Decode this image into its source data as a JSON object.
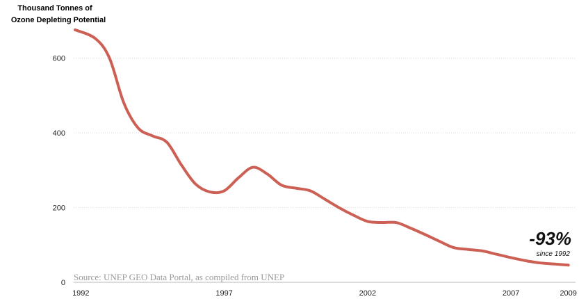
{
  "chart_data": {
    "type": "line",
    "title": "",
    "ylabel_lines": [
      "Thousand Tonnes of",
      "Ozone Depleting Potential"
    ],
    "xlabel": "",
    "x_ticks": [
      "1992",
      "1997",
      "2002",
      "2007",
      "2009"
    ],
    "y_ticks": [
      "0",
      "200",
      "400",
      "600"
    ],
    "xlim": [
      1991.75,
      2009.25
    ],
    "ylim": [
      0,
      700
    ],
    "grid": "horizontal dotted",
    "series": [
      {
        "color": "#cc6054",
        "x": [
          1991.8,
          1992.5,
          1993.0,
          1993.5,
          1994.0,
          1994.5,
          1995.0,
          1995.5,
          1996.0,
          1996.5,
          1997.0,
          1997.5,
          1998.0,
          1998.5,
          1999.0,
          1999.5,
          2000.0,
          2000.5,
          2001.0,
          2001.5,
          2002.0,
          2002.5,
          2003.0,
          2003.5,
          2004.0,
          2004.5,
          2005.0,
          2005.5,
          2006.0,
          2006.5,
          2007.0,
          2007.5,
          2008.0,
          2008.5,
          2009.0
        ],
        "y": [
          676,
          653,
          600,
          480,
          413,
          392,
          375,
          315,
          263,
          242,
          245,
          280,
          308,
          290,
          260,
          252,
          245,
          223,
          200,
          180,
          163,
          160,
          160,
          145,
          128,
          110,
          93,
          88,
          84,
          75,
          66,
          58,
          52,
          49,
          46
        ]
      }
    ],
    "annotations": {
      "change_value": "-93%",
      "change_label": "since 1992",
      "source": "Source: UNEP GEO Data Portal, as compiled from UNEP"
    }
  }
}
